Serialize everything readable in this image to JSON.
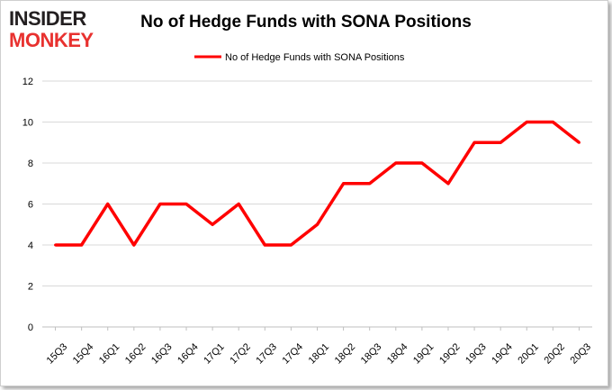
{
  "logo": {
    "line1": "INSIDER",
    "line2": "MONKEY"
  },
  "chart_data": {
    "type": "line",
    "title": "No of Hedge Funds with SONA Positions",
    "xlabel": "",
    "ylabel": "",
    "categories": [
      "15Q3",
      "15Q4",
      "16Q1",
      "16Q2",
      "16Q3",
      "16Q4",
      "17Q1",
      "17Q2",
      "17Q3",
      "17Q4",
      "18Q1",
      "18Q2",
      "18Q3",
      "18Q4",
      "19Q1",
      "19Q2",
      "19Q3",
      "19Q4",
      "20Q1",
      "20Q2",
      "20Q3"
    ],
    "series": [
      {
        "name": "No of Hedge Funds with SONA Positions",
        "values": [
          4,
          4,
          6,
          4,
          6,
          6,
          5,
          6,
          4,
          4,
          5,
          7,
          7,
          8,
          8,
          7,
          9,
          9,
          10,
          10,
          9
        ]
      }
    ],
    "ylim": [
      0,
      12
    ],
    "yticks": [
      0,
      2,
      4,
      6,
      8,
      10,
      12
    ],
    "grid": true,
    "legend": "top-center",
    "colors": {
      "line": "#ff0000",
      "grid": "#d9d9d9",
      "logo_dark": "#231f20",
      "logo_red": "#e8312f"
    }
  }
}
